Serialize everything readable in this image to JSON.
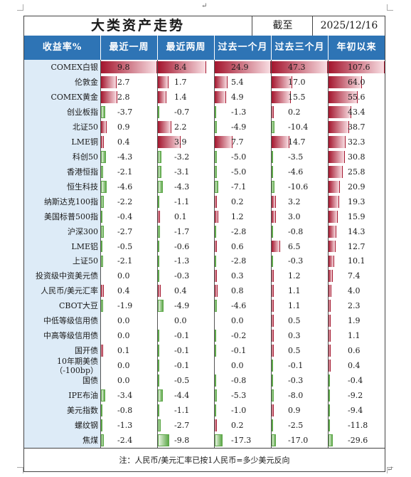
{
  "title": "大类资产走势",
  "date_label": "截至",
  "date_value": "2025/12/16",
  "paragraph_mark": "↵",
  "headers": [
    "收益率%",
    "最近一周",
    "最近两周",
    "过去一个月",
    "过去三个月",
    "年初以来"
  ],
  "rows": [
    {
      "name": "COMEX白银",
      "values": [
        9.8,
        8.4,
        24.9,
        47.3,
        107.6
      ]
    },
    {
      "name": "伦敦金",
      "values": [
        2.7,
        1.7,
        5.4,
        17.0,
        64.0
      ]
    },
    {
      "name": "COMEX黄金",
      "values": [
        2.8,
        1.4,
        4.9,
        15.5,
        55.6
      ]
    },
    {
      "name": "创业板指",
      "values": [
        -3.7,
        -0.7,
        -1.3,
        0.2,
        43.4
      ]
    },
    {
      "name": "北证50",
      "values": [
        0.9,
        2.2,
        -4.9,
        -10.4,
        38.7
      ]
    },
    {
      "name": "LME铜",
      "values": [
        0.4,
        3.9,
        7.7,
        14.7,
        32.3
      ]
    },
    {
      "name": "科创50",
      "values": [
        -4.3,
        -3.2,
        -5.0,
        -3.5,
        30.8
      ]
    },
    {
      "name": "香港恒指",
      "values": [
        -2.1,
        -3.1,
        -5.0,
        -4.6,
        25.8
      ]
    },
    {
      "name": "恒生科技",
      "values": [
        -4.6,
        -4.3,
        -7.1,
        -10.6,
        20.9
      ]
    },
    {
      "name": "纳斯达克100指",
      "values": [
        -2.2,
        -1.1,
        0.2,
        3.2,
        19.3
      ]
    },
    {
      "name": "美国标普500指",
      "values": [
        -0.4,
        0.1,
        1.2,
        3.0,
        15.9
      ]
    },
    {
      "name": "沪深300",
      "values": [
        -2.7,
        -1.7,
        -2.8,
        -0.8,
        14.3
      ]
    },
    {
      "name": "LME铝",
      "values": [
        -0.5,
        -0.6,
        0.6,
        6.5,
        12.7
      ]
    },
    {
      "name": "上证50",
      "values": [
        -2.1,
        -1.3,
        -2.8,
        -0.3,
        10.1
      ]
    },
    {
      "name": "投资级中资美元债",
      "values": [
        0.0,
        -0.3,
        0.3,
        1.2,
        7.4
      ]
    },
    {
      "name": "人民币/美元汇率",
      "values": [
        0.4,
        0.4,
        0.8,
        1.1,
        4.0
      ]
    },
    {
      "name": "CBOT大豆",
      "values": [
        -1.9,
        -4.9,
        -4.6,
        1.1,
        2.3
      ]
    },
    {
      "name": "中低等级信用债",
      "values": [
        0.0,
        0.0,
        0.0,
        0.5,
        1.9
      ]
    },
    {
      "name": "中高等级信用债",
      "values": [
        0.0,
        -0.1,
        -0.2,
        0.3,
        1.1
      ]
    },
    {
      "name": "国开债",
      "values": [
        0.1,
        -0.1,
        -0.1,
        0.5,
        0.6
      ]
    },
    {
      "name": "10年期美债（-100bp）",
      "values": [
        0.0,
        -0.1,
        0.0,
        -0.1,
        0.4
      ]
    },
    {
      "name": "国债",
      "values": [
        0.0,
        -0.5,
        -0.8,
        -0.3,
        -0.4
      ]
    },
    {
      "name": "IPE布油",
      "values": [
        -3.4,
        -4.4,
        -5.3,
        -8.0,
        -9.2
      ]
    },
    {
      "name": "美元指数",
      "values": [
        -0.8,
        -1.1,
        -1.0,
        0.9,
        -9.4
      ]
    },
    {
      "name": "螺纹钢",
      "values": [
        -1.3,
        -2.7,
        0.2,
        -2.5,
        -11.8
      ]
    },
    {
      "name": "焦煤",
      "values": [
        -2.4,
        -9.8,
        -17.3,
        -17.0,
        -29.6
      ]
    }
  ],
  "note": "注：人民币/美元汇率已按1人民币=多少美元反向",
  "colors": {
    "header_bg": "#2e74b5",
    "label_bg": "#ddebf7",
    "positive_bar_dark": "#a4162e",
    "positive_bar_light": "#f8dde2",
    "negative_bar_dark": "#5ea84a",
    "negative_bar_light": "#e8f4e2"
  }
}
